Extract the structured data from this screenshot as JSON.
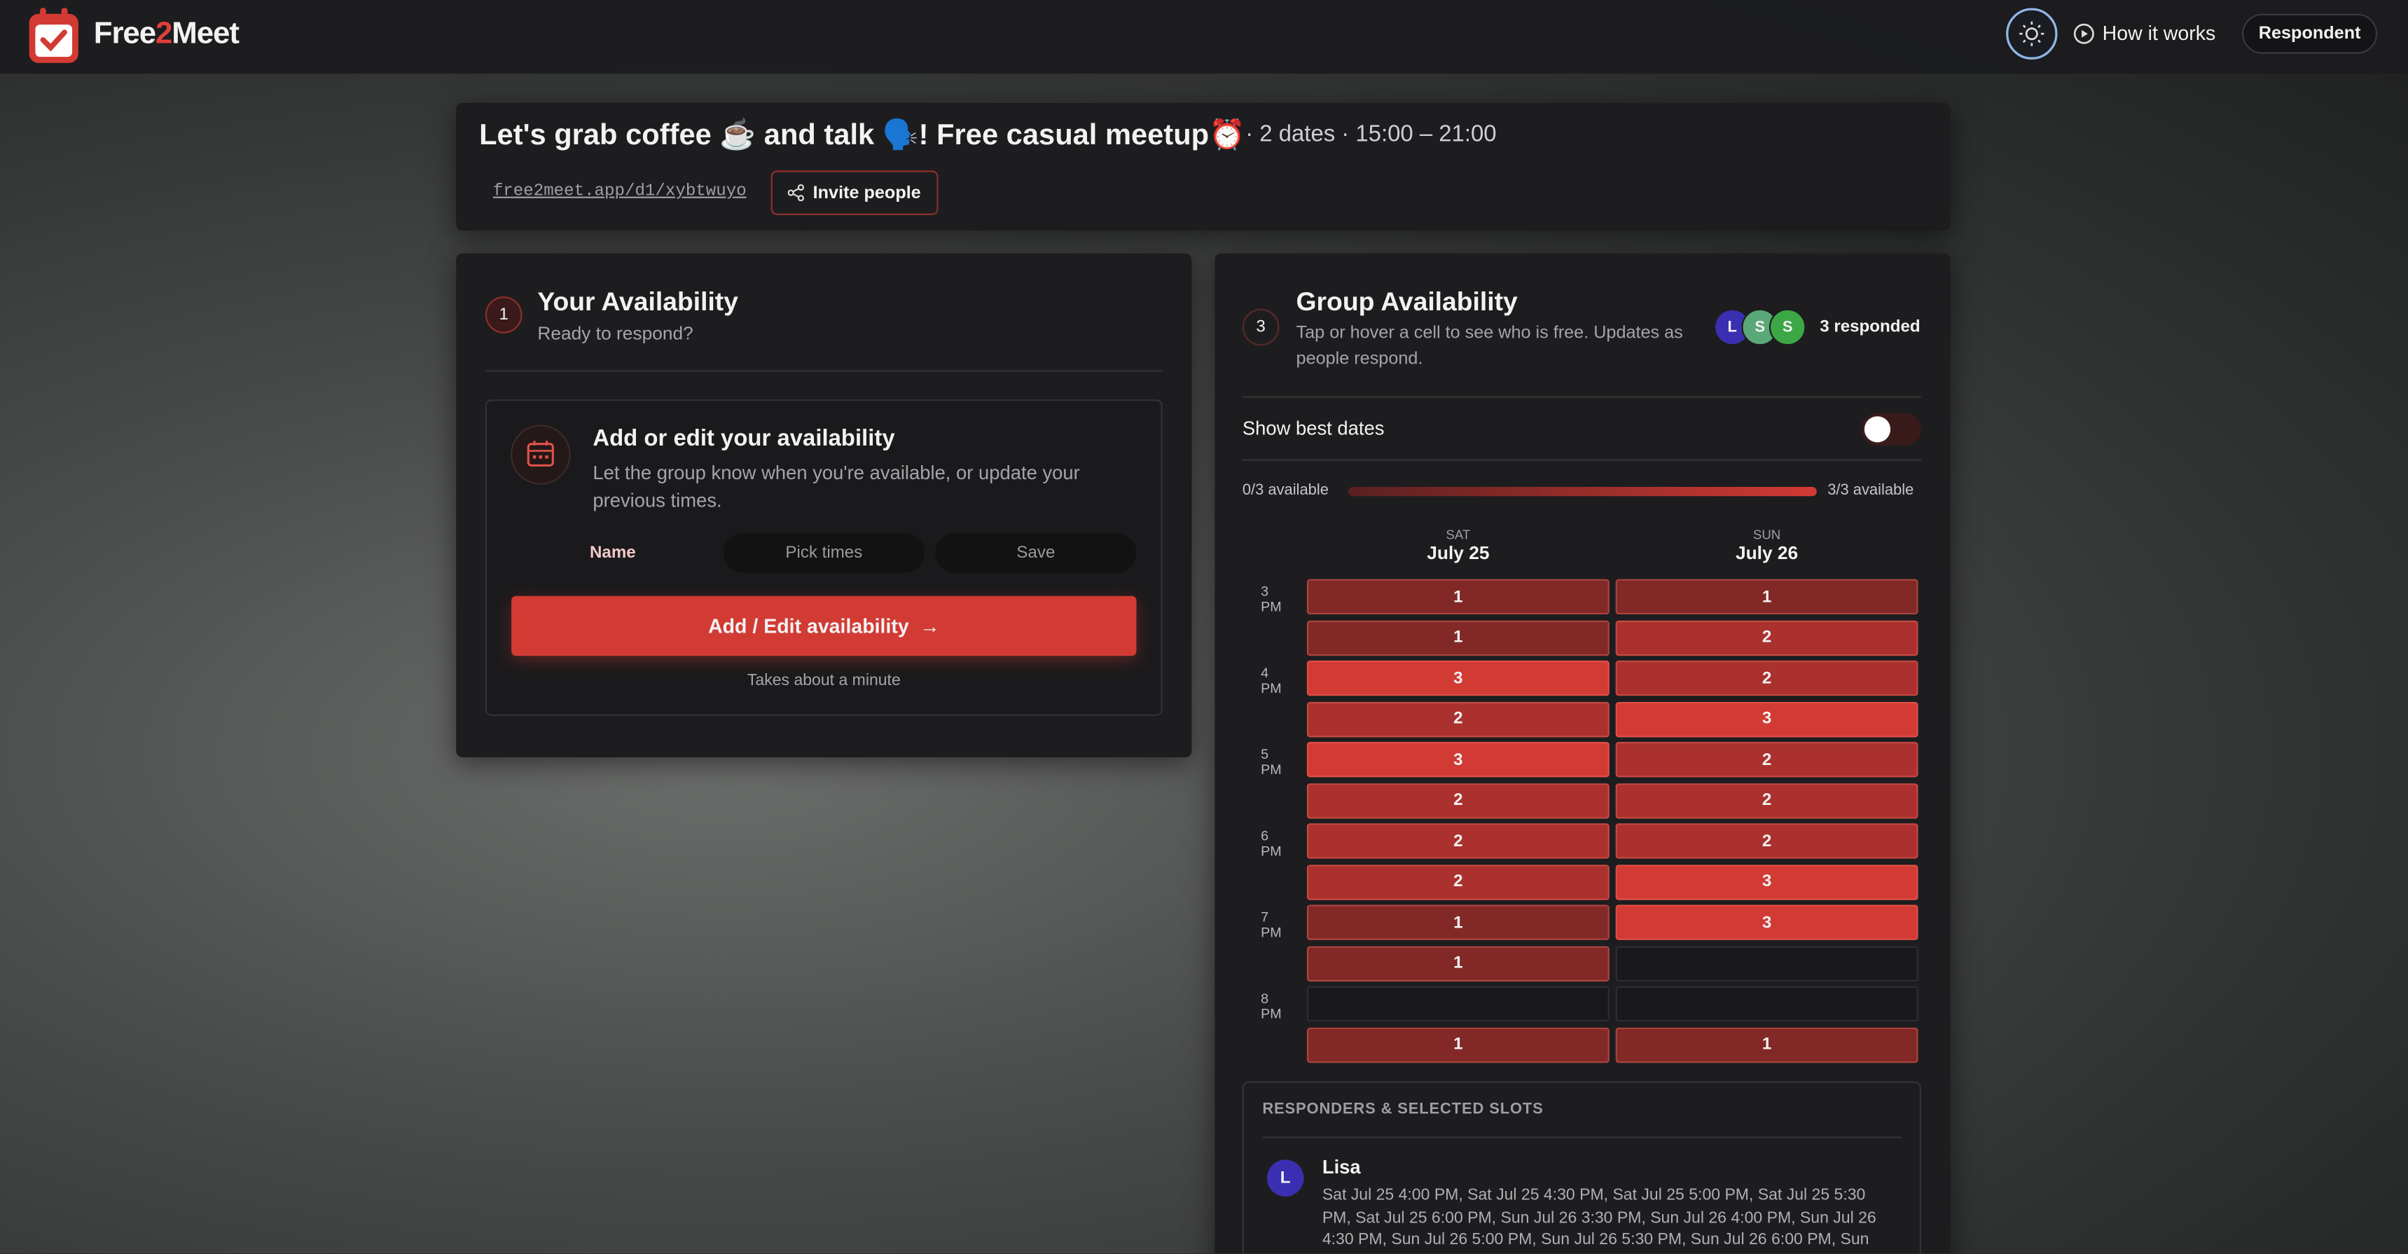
{
  "header": {
    "brand": [
      "Free",
      "2",
      "Meet"
    ],
    "how_it_works": "How it works",
    "role": "Respondent"
  },
  "event": {
    "title": "Let's grab coffee ☕ and talk 🗣️! Free casual meetup⏰",
    "meta": "· 2 dates · 15:00 – 21:00",
    "link": "free2meet.app/d1/xybtwuyo",
    "invite": "Invite people"
  },
  "your": {
    "step": "1",
    "title": "Your Availability",
    "subtitle": "Ready to respond?",
    "card_title": "Add or edit your availability",
    "card_text": "Let the group know when you're available, or update your previous times.",
    "steps": [
      "Name",
      "Pick times",
      "Save"
    ],
    "button": "Add / Edit availability",
    "button_arrow": "→",
    "note": "Takes about a minute"
  },
  "group": {
    "step": "3",
    "title": "Group Availability",
    "subtitle": "Tap or hover a cell to see who is free. Updates as people respond.",
    "avatars": [
      "L",
      "S",
      "S"
    ],
    "responded": "3 responded",
    "best_dates": "Show best dates",
    "legend_min": "0/3 available",
    "legend_max": "3/3 available",
    "days": [
      {
        "dow": "SAT",
        "date": "July 25"
      },
      {
        "dow": "SUN",
        "date": "July 26"
      }
    ],
    "time_labels": [
      "3 PM",
      null,
      "4 PM",
      null,
      "5 PM",
      null,
      "6 PM",
      null,
      "7 PM",
      null,
      "8 PM",
      null
    ],
    "grid": [
      [
        1,
        1
      ],
      [
        1,
        2
      ],
      [
        3,
        2
      ],
      [
        2,
        3
      ],
      [
        3,
        2
      ],
      [
        2,
        2
      ],
      [
        2,
        2
      ],
      [
        2,
        3
      ],
      [
        1,
        3
      ],
      [
        1,
        null
      ],
      [
        null,
        null
      ],
      [
        1,
        1
      ]
    ],
    "responders_title": "RESPONDERS & SELECTED SLOTS",
    "responders": [
      {
        "initial": "L",
        "name": "Lisa",
        "slots": "Sat Jul 25 4:00 PM, Sat Jul 25 4:30 PM, Sat Jul 25 5:00 PM, Sat Jul 25 5:30 PM, Sat Jul 25 6:00 PM, Sun Jul 26 3:30 PM, Sun Jul 26 4:00 PM, Sun Jul 26 4:30 PM, Sun Jul 26 5:00 PM, Sun Jul 26 5:30 PM, Sun Jul 26 6:00 PM, Sun"
      }
    ]
  }
}
